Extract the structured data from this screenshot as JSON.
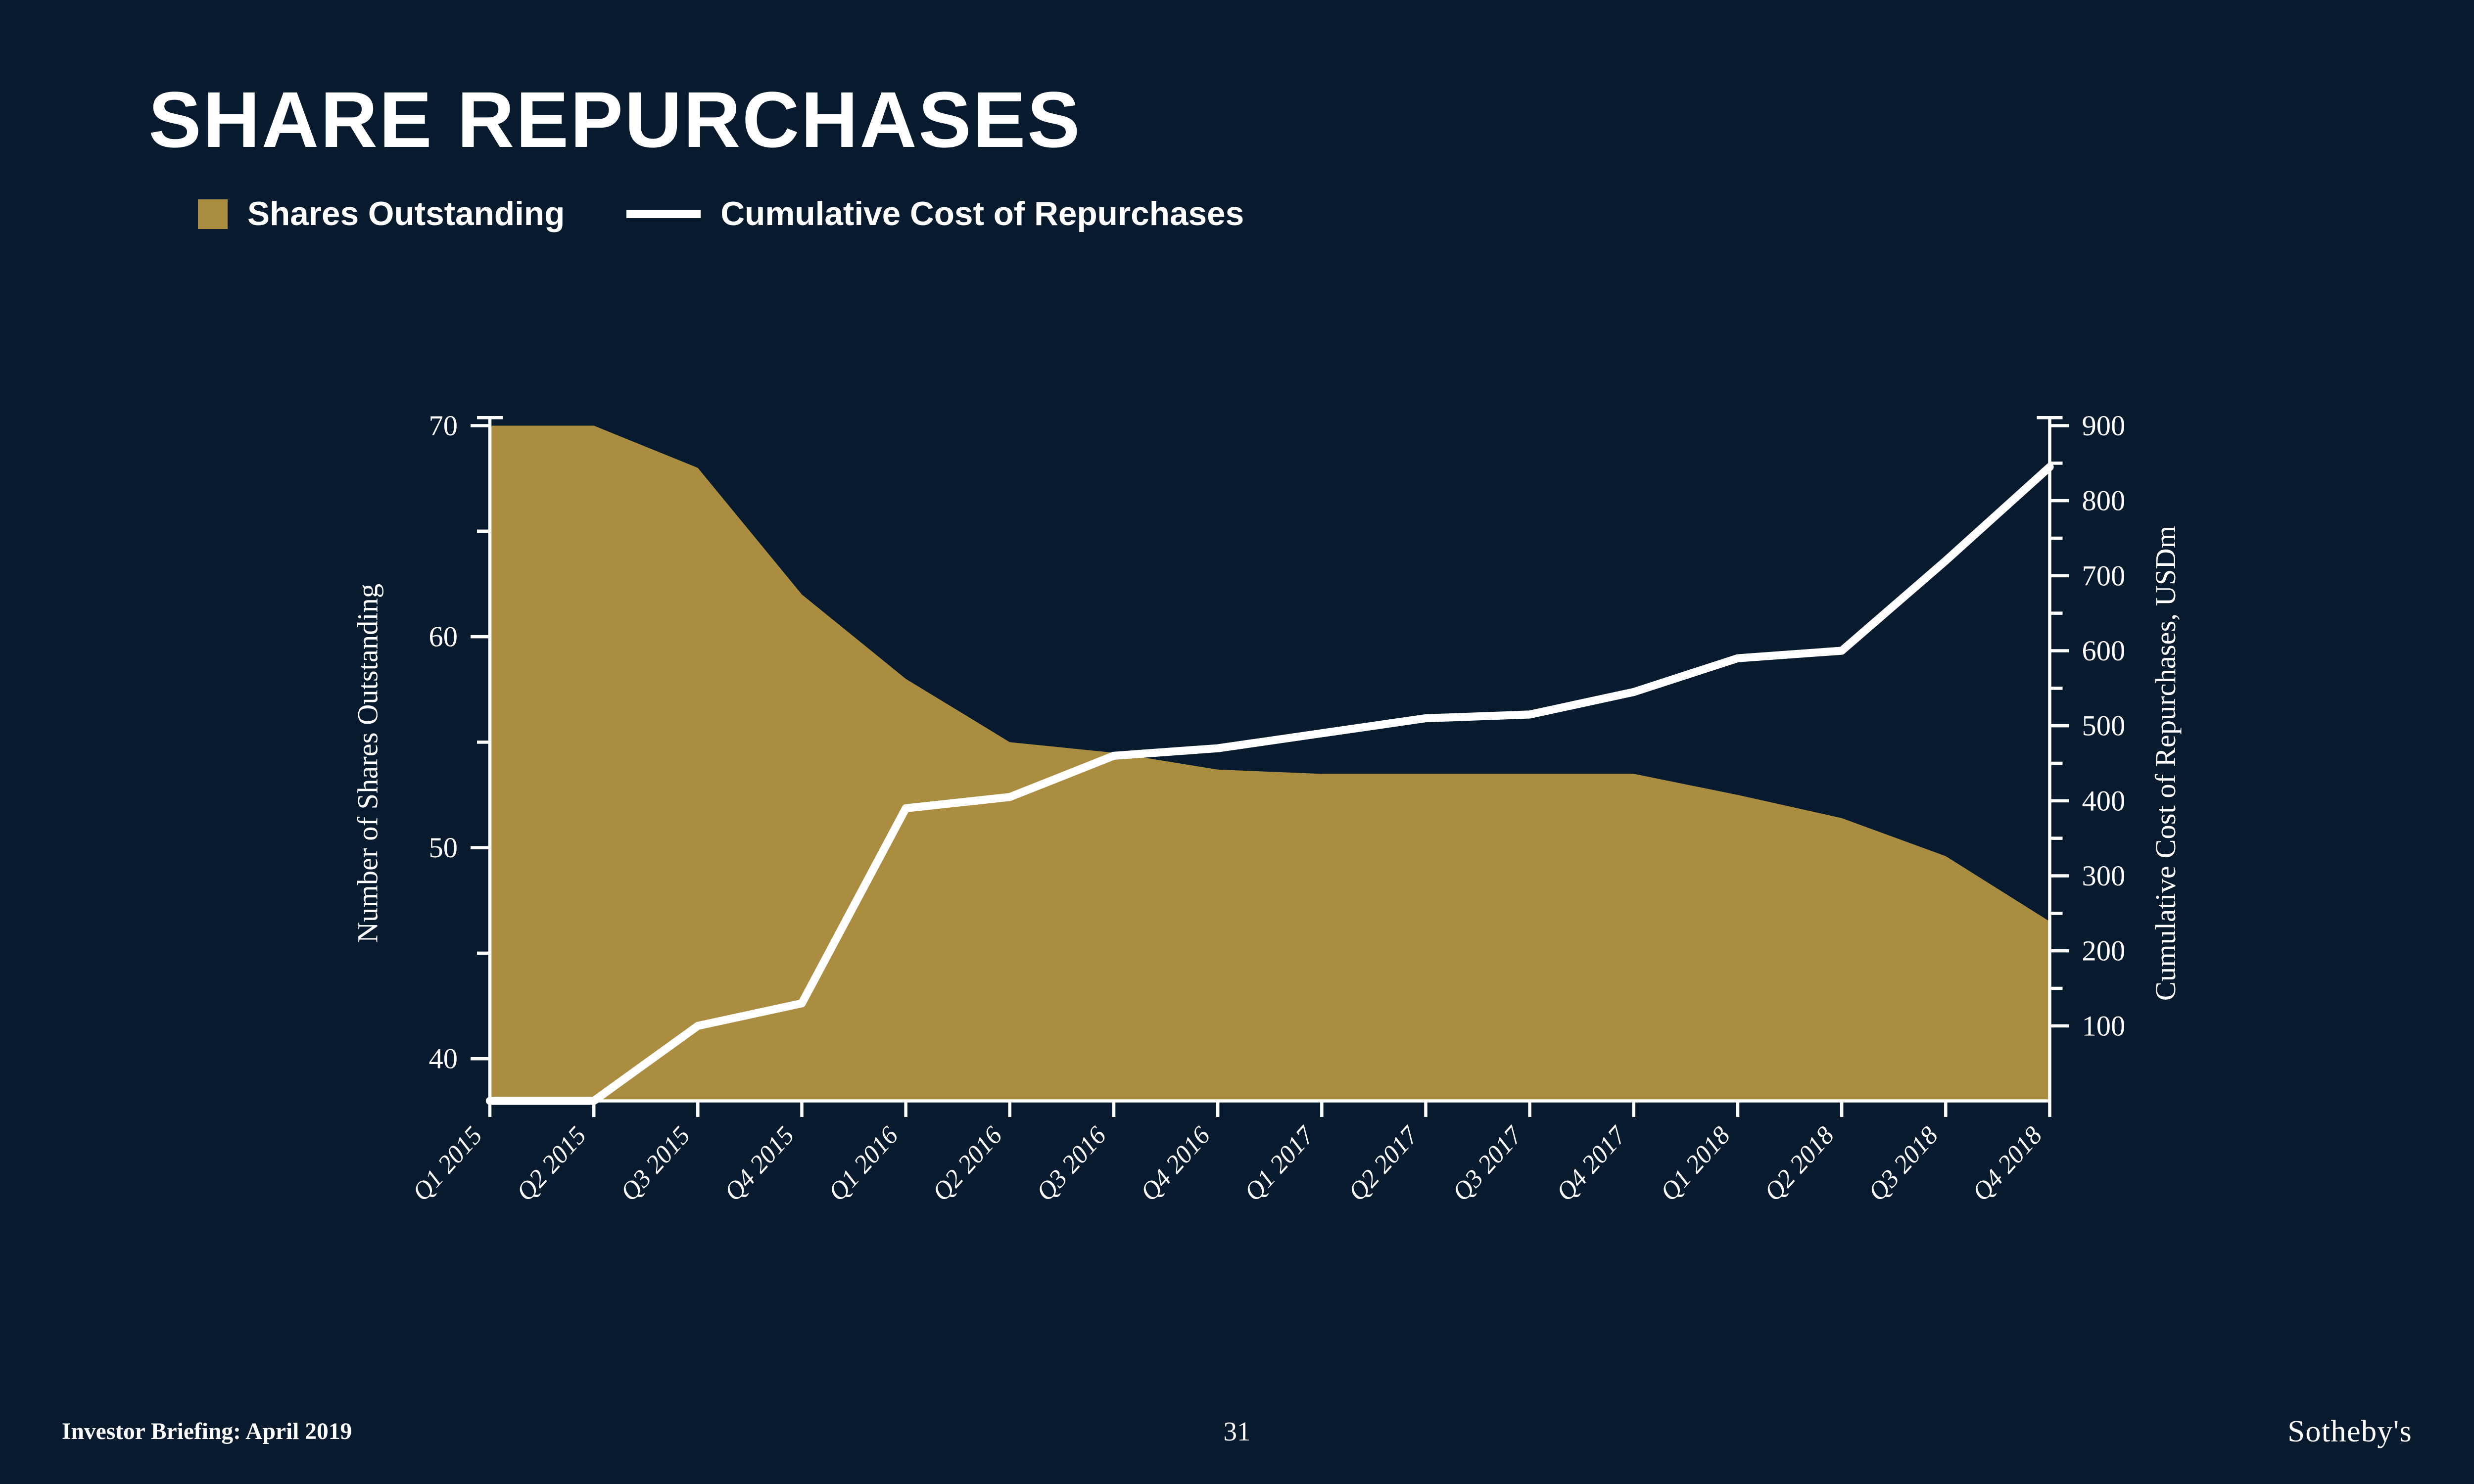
{
  "title": "SHARE REPURCHASES",
  "legend": {
    "shares_label": "Shares Outstanding",
    "cost_label": "Cumulative Cost of Repurchases"
  },
  "footer": {
    "left": "Investor Briefing: April 2019",
    "page": "31",
    "brand": "Sotheby's"
  },
  "chart": {
    "type": "combo-area-line",
    "background_color": "#071a2e",
    "area_color": "#ab8d42",
    "line_color": "#ffffff",
    "line_width": 5,
    "axis_color": "#ffffff",
    "tick_color": "#ffffff",
    "axis_font_size": 18,
    "xlabel_font_size": 16,
    "y1_label": "Number of Shares Outstanding",
    "y2_label": "Cumulative Cost of Repurchases, USDm",
    "y1_lim": [
      40,
      70
    ],
    "y1_ticks": [
      40,
      50,
      60,
      70
    ],
    "y1_floor": 38,
    "y2_lim": [
      0,
      900
    ],
    "y2_ticks": [
      100,
      200,
      300,
      400,
      500,
      600,
      700,
      800,
      900
    ],
    "categories": [
      "Q1 2015",
      "Q2 2015",
      "Q3 2015",
      "Q4 2015",
      "Q1 2016",
      "Q2 2016",
      "Q3 2016",
      "Q4 2016",
      "Q1 2017",
      "Q2 2017",
      "Q3 2017",
      "Q4 2017",
      "Q1 2018",
      "Q2 2018",
      "Q3 2018",
      "Q4 2018"
    ],
    "shares_outstanding": [
      70,
      70,
      68,
      62,
      58,
      55,
      54.5,
      53.7,
      53.5,
      53.5,
      53.5,
      53.5,
      52.5,
      51.4,
      49.6,
      46.5
    ],
    "cumulative_cost": [
      0,
      0,
      100,
      130,
      390,
      405,
      460,
      470,
      490,
      510,
      515,
      545,
      590,
      600,
      720,
      845
    ]
  }
}
